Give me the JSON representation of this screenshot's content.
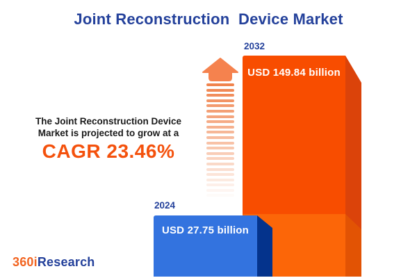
{
  "title": "Joint Reconstruction  Device Market",
  "promo": {
    "line1": "The Joint Reconstruction Device",
    "line2": "Market is projected to grow at a",
    "cagr": "CAGR 23.46%"
  },
  "chart": {
    "base": {
      "year": "2024",
      "label": "USD 27.75 billion"
    },
    "forecast": {
      "year": "2032",
      "label": "USD 149.84 billion"
    }
  },
  "chart_data": {
    "type": "bar",
    "categories": [
      "2024",
      "2032"
    ],
    "values": [
      27.75,
      149.84
    ],
    "unit": "USD billion",
    "title": "Joint Reconstruction Device Market",
    "annotations": [
      "The Joint Reconstruction Device Market is projected to grow at a CAGR 23.46%"
    ],
    "cagr_percent": 23.46,
    "bar_colors": {
      "2024": "#3373DF",
      "2032": "#F84D00"
    },
    "bar_side_colors": {
      "2024": "#04338C",
      "2032": "#DB430A"
    },
    "base_panel_colors": {
      "face": "#FC6608",
      "side": "#E25304"
    },
    "style": "pictorial 3D bars, value labels on bars, no axes, no grid, no legend"
  },
  "icons": {
    "growth_arrow": "up-arrow-fading-dashes",
    "growth_arrow_color": "#F5824E",
    "growth_arrow_dash_color": "#F0834D"
  },
  "logo": {
    "prefix": "360i",
    "suffix": "Research"
  },
  "colors": {
    "title": "#24419B",
    "cagr_text": "#F4510C",
    "body_text": "#1A1A1A",
    "background": "#FFFFFF",
    "bar_label_text": "#FFFFFF",
    "logo_prefix": "#F26522",
    "logo_suffix": "#24419B"
  }
}
